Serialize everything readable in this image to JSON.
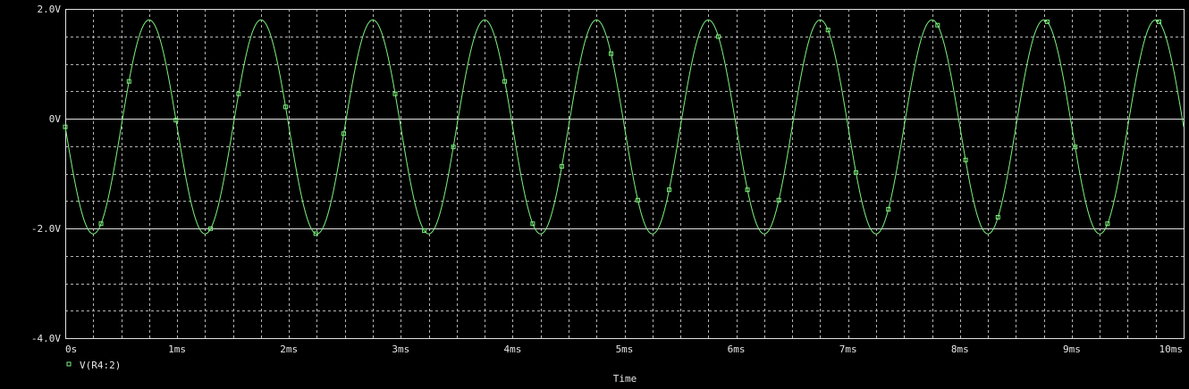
{
  "colors": {
    "background": "#000000",
    "axis": "#e0e0e0",
    "grid": "#b4b4b4",
    "trace": "#7cf07c",
    "text": "#e6e6e6"
  },
  "chart_data": {
    "type": "line",
    "title": "",
    "xlabel": "Time",
    "ylabel": "",
    "xlim": [
      0,
      10
    ],
    "ylim": [
      -4.0,
      2.0
    ],
    "x_unit": "ms",
    "y_unit": "V",
    "x_ticks": [
      0,
      1,
      2,
      3,
      4,
      5,
      6,
      7,
      8,
      9,
      10
    ],
    "x_tick_labels": [
      "0s",
      "1ms",
      "2ms",
      "3ms",
      "4ms",
      "5ms",
      "6ms",
      "7ms",
      "8ms",
      "9ms",
      "10ms"
    ],
    "y_ticks": [
      2.0,
      0,
      -2.0,
      -4.0
    ],
    "y_tick_labels": [
      "2.0V",
      "0V",
      "-2.0V",
      "-4.0V"
    ],
    "grid": true,
    "legend_position": "bottom-left",
    "series": [
      {
        "name": "V(R4:2)",
        "marker": "square",
        "waveform": {
          "kind": "sine",
          "offset": -0.15,
          "amplitude": 1.95,
          "frequency_khz": 1.0,
          "phase_deg": 180
        },
        "marker_times_ms": [
          0.0,
          0.32,
          0.57,
          0.99,
          1.3,
          1.55,
          1.97,
          2.24,
          2.49,
          2.95,
          3.21,
          3.47,
          3.93,
          4.18,
          4.44,
          4.88,
          5.12,
          5.4,
          5.84,
          6.1,
          6.38,
          6.82,
          7.07,
          7.36,
          7.8,
          8.05,
          8.34,
          8.78,
          9.03,
          9.32,
          9.78
        ]
      }
    ]
  }
}
